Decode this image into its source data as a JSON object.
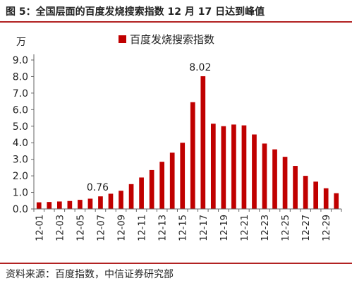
{
  "figure": {
    "title": "图 5：全国层面的百度发烧搜索指数 12 月 17 日达到峰值",
    "source": "资料来源：百度指数，中信证券研究部"
  },
  "colors": {
    "bar": "#c00000",
    "rule": "#b22222",
    "axis": "#666666"
  },
  "chart_data": {
    "type": "bar",
    "title": "",
    "ylabel": "万",
    "xlabel": "",
    "legend": {
      "position": "top-center",
      "entries": [
        "百度发烧搜索指数"
      ]
    },
    "ylim": [
      0,
      9
    ],
    "yticks": [
      "0.0",
      "1.0",
      "2.0",
      "3.0",
      "4.0",
      "5.0",
      "6.0",
      "7.0",
      "8.0",
      "9.0"
    ],
    "grid": false,
    "categories": [
      "12-01",
      "12-02",
      "12-03",
      "12-04",
      "12-05",
      "12-06",
      "12-07",
      "12-08",
      "12-09",
      "12-10",
      "12-11",
      "12-12",
      "12-13",
      "12-14",
      "12-15",
      "12-16",
      "12-17",
      "12-18",
      "12-19",
      "12-20",
      "12-21",
      "12-22",
      "12-23",
      "12-24",
      "12-25",
      "12-26",
      "12-27",
      "12-28",
      "12-29",
      "12-30"
    ],
    "xtick_labels": [
      "12-01",
      "12-03",
      "12-05",
      "12-07",
      "12-09",
      "12-11",
      "12-13",
      "12-15",
      "12-17",
      "12-19",
      "12-21",
      "12-23",
      "12-25",
      "12-27",
      "12-29"
    ],
    "series": [
      {
        "name": "百度发烧搜索指数",
        "values": [
          0.4,
          0.42,
          0.45,
          0.48,
          0.55,
          0.62,
          0.76,
          0.92,
          1.1,
          1.5,
          1.9,
          2.35,
          2.85,
          3.4,
          4.0,
          6.45,
          8.02,
          5.15,
          5.0,
          5.1,
          5.05,
          4.5,
          3.95,
          3.6,
          3.15,
          2.6,
          2.0,
          1.65,
          1.25,
          0.95
        ]
      }
    ],
    "annotations": [
      {
        "category": "12-07",
        "text": "0.76"
      },
      {
        "category": "12-17",
        "text": "8.02"
      }
    ]
  }
}
